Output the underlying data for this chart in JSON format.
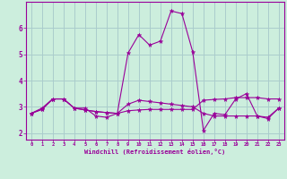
{
  "xlabel": "Windchill (Refroidissement éolien,°C)",
  "background_color": "#cceedd",
  "grid_color": "#aacccc",
  "line_color": "#990099",
  "xlim": [
    -0.5,
    23.5
  ],
  "ylim": [
    1.75,
    7.0
  ],
  "yticks": [
    2,
    3,
    4,
    5,
    6
  ],
  "xticks": [
    0,
    1,
    2,
    3,
    4,
    5,
    6,
    7,
    8,
    9,
    10,
    11,
    12,
    13,
    14,
    15,
    16,
    17,
    18,
    19,
    20,
    21,
    22,
    23
  ],
  "series1_x": [
    0,
    1,
    2,
    3,
    4,
    5,
    6,
    7,
    8,
    9,
    10,
    11,
    12,
    13,
    14,
    15,
    16,
    17,
    18,
    19,
    20,
    21,
    22,
    23
  ],
  "series1_y": [
    2.75,
    2.95,
    3.3,
    3.3,
    2.95,
    2.95,
    2.65,
    2.6,
    2.75,
    5.05,
    5.75,
    5.35,
    5.5,
    6.65,
    6.55,
    5.1,
    2.1,
    2.75,
    2.7,
    3.3,
    3.5,
    2.65,
    2.55,
    2.95
  ],
  "series2_x": [
    0,
    1,
    2,
    3,
    4,
    5,
    6,
    7,
    8,
    9,
    10,
    11,
    12,
    13,
    14,
    15,
    16,
    17,
    18,
    19,
    20,
    21,
    22,
    23
  ],
  "series2_y": [
    2.75,
    2.9,
    3.3,
    3.3,
    2.95,
    2.88,
    2.82,
    2.78,
    2.75,
    2.85,
    2.88,
    2.9,
    2.9,
    2.9,
    2.9,
    2.9,
    3.25,
    3.28,
    3.3,
    3.35,
    3.35,
    3.35,
    3.3,
    3.3
  ],
  "series3_x": [
    0,
    1,
    2,
    3,
    4,
    5,
    6,
    7,
    8,
    9,
    10,
    11,
    12,
    13,
    14,
    15,
    16,
    17,
    18,
    19,
    20,
    21,
    22,
    23
  ],
  "series3_y": [
    2.75,
    2.9,
    3.3,
    3.3,
    2.95,
    2.88,
    2.82,
    2.78,
    2.75,
    3.1,
    3.25,
    3.2,
    3.15,
    3.1,
    3.05,
    3.0,
    2.75,
    2.65,
    2.65,
    2.65,
    2.65,
    2.65,
    2.6,
    2.95
  ]
}
